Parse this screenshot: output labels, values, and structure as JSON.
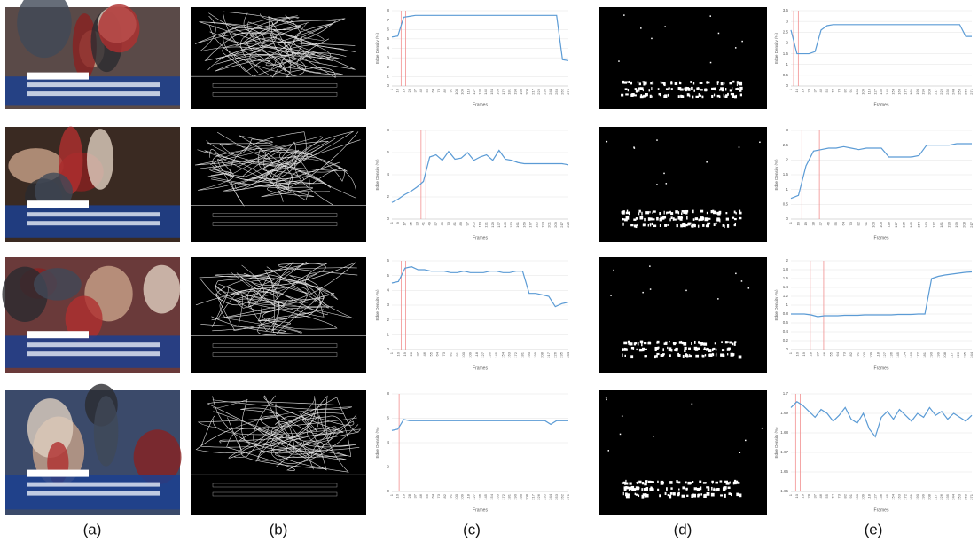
{
  "labels": [
    "(a)",
    "(b)",
    "(c)",
    "(d)",
    "(e)"
  ],
  "chart_data": [
    {
      "type": "line",
      "ylabel": "Edge Density (%)",
      "xlabel": "Frames",
      "color": "#5b9bd5",
      "grid": true,
      "categories": [
        1,
        10,
        19,
        28,
        37,
        46,
        55,
        64,
        73,
        82,
        91,
        100,
        109,
        118,
        127,
        136,
        145,
        154,
        163,
        172,
        181,
        190,
        199,
        208,
        217,
        226,
        235,
        244,
        253,
        262,
        271
      ],
      "values": [
        5.2,
        5.3,
        7.3,
        7.4,
        7.5,
        7.5,
        7.5,
        7.5,
        7.5,
        7.5,
        7.5,
        7.5,
        7.5,
        7.5,
        7.5,
        7.5,
        7.5,
        7.5,
        7.5,
        7.5,
        7.5,
        7.5,
        7.5,
        7.5,
        7.5,
        7.5,
        7.5,
        7.5,
        7.5,
        2.8,
        2.7
      ],
      "ylim": [
        0,
        8
      ],
      "yticks": [
        0,
        1,
        2,
        3,
        4,
        5,
        6,
        7,
        8
      ],
      "vlines": [
        15,
        22
      ],
      "vline_color": "#f08080"
    },
    {
      "type": "line",
      "ylabel": "Edge Density (%)",
      "xlabel": "Frames",
      "color": "#5b9bd5",
      "grid": true,
      "categories": [
        1,
        10,
        19,
        28,
        37,
        46,
        55,
        64,
        73,
        82,
        91,
        100,
        109,
        118,
        127,
        136,
        145,
        154,
        163,
        172,
        181,
        190,
        199,
        208,
        217,
        226,
        235,
        244,
        253,
        262,
        271
      ],
      "values": [
        2.6,
        1.5,
        1.5,
        1.5,
        1.6,
        2.6,
        2.8,
        2.85,
        2.85,
        2.85,
        2.85,
        2.85,
        2.85,
        2.85,
        2.85,
        2.85,
        2.85,
        2.85,
        2.85,
        2.85,
        2.85,
        2.85,
        2.85,
        2.85,
        2.85,
        2.85,
        2.85,
        2.85,
        2.85,
        2.3,
        2.3
      ],
      "ylim": [
        0,
        3.5
      ],
      "yticks": [
        0,
        0.5,
        1,
        1.5,
        2,
        2.5,
        3,
        3.5
      ],
      "vlines": [
        5,
        12
      ],
      "vline_color": "#f08080"
    },
    {
      "type": "line",
      "ylabel": "Edge Density (%)",
      "xlabel": "Frames",
      "color": "#5b9bd5",
      "grid": true,
      "categories": [
        1,
        9,
        17,
        25,
        33,
        41,
        49,
        57,
        65,
        73,
        81,
        89,
        97,
        105,
        113,
        121,
        129,
        137,
        145,
        153,
        161,
        169,
        177,
        185,
        193,
        201,
        209,
        217,
        225
      ],
      "values": [
        1.5,
        1.8,
        2.2,
        2.5,
        2.9,
        3.4,
        5.6,
        5.8,
        5.3,
        6.1,
        5.4,
        5.5,
        6.0,
        5.3,
        5.6,
        5.8,
        5.3,
        6.2,
        5.4,
        5.3,
        5.1,
        5.0,
        5.0,
        5.0,
        5.0,
        5.0,
        5.0,
        5.0,
        4.9
      ],
      "ylim": [
        0,
        8
      ],
      "yticks": [
        0,
        2,
        4,
        6,
        8
      ],
      "vlines": [
        38,
        44
      ],
      "vline_color": "#f08080"
    },
    {
      "type": "line",
      "ylabel": "Edge Density (%)",
      "xlabel": "Frames",
      "color": "#5b9bd5",
      "grid": true,
      "categories": [
        1,
        10,
        19,
        28,
        37,
        46,
        55,
        64,
        73,
        82,
        91,
        100,
        109,
        118,
        127,
        136,
        145,
        154,
        163,
        172,
        181,
        190,
        199,
        208,
        217
      ],
      "values": [
        0.7,
        0.8,
        1.8,
        2.3,
        2.35,
        2.4,
        2.4,
        2.45,
        2.4,
        2.35,
        2.4,
        2.4,
        2.4,
        2.1,
        2.1,
        2.1,
        2.1,
        2.15,
        2.5,
        2.5,
        2.5,
        2.5,
        2.55,
        2.55,
        2.55
      ],
      "ylim": [
        0,
        3
      ],
      "yticks": [
        0,
        0.5,
        1,
        1.5,
        2,
        2.5,
        3
      ],
      "vlines": [
        14,
        35
      ],
      "vline_color": "#f08080"
    },
    {
      "type": "line",
      "ylabel": "Edge Density (%)",
      "xlabel": "Frames",
      "color": "#5b9bd5",
      "grid": true,
      "categories": [
        1,
        10,
        19,
        28,
        37,
        46,
        55,
        64,
        73,
        82,
        91,
        100,
        109,
        118,
        127,
        136,
        145,
        154,
        163,
        172,
        181,
        190,
        199,
        208,
        217,
        226,
        235,
        244
      ],
      "values": [
        4.5,
        4.6,
        5.5,
        5.6,
        5.4,
        5.4,
        5.3,
        5.3,
        5.3,
        5.2,
        5.2,
        5.3,
        5.2,
        5.2,
        5.2,
        5.3,
        5.3,
        5.2,
        5.2,
        5.3,
        5.3,
        3.8,
        3.8,
        3.7,
        3.6,
        2.9,
        3.1,
        3.2
      ],
      "ylim": [
        0,
        6
      ],
      "yticks": [
        0,
        1,
        2,
        3,
        4,
        5,
        6
      ],
      "vlines": [
        14,
        20
      ],
      "vline_color": "#f08080"
    },
    {
      "type": "line",
      "ylabel": "Edge Density (%)",
      "xlabel": "Frames",
      "color": "#5b9bd5",
      "grid": true,
      "categories": [
        1,
        10,
        19,
        28,
        37,
        46,
        55,
        64,
        73,
        82,
        91,
        100,
        109,
        118,
        127,
        136,
        145,
        154,
        163,
        172,
        181,
        190,
        199,
        208,
        217,
        226,
        235,
        244
      ],
      "values": [
        0.8,
        0.8,
        0.8,
        0.78,
        0.74,
        0.76,
        0.76,
        0.76,
        0.77,
        0.77,
        0.77,
        0.78,
        0.78,
        0.78,
        0.78,
        0.78,
        0.79,
        0.79,
        0.79,
        0.8,
        0.8,
        1.6,
        1.65,
        1.68,
        1.7,
        1.72,
        1.74,
        1.75
      ],
      "ylim": [
        0,
        2
      ],
      "yticks": [
        0,
        0.2,
        0.4,
        0.6,
        0.8,
        1,
        1.2,
        1.4,
        1.6,
        1.8,
        2
      ],
      "vlines": [
        27,
        45
      ],
      "vline_color": "#f08080"
    },
    {
      "type": "line",
      "ylabel": "Edge Density (%)",
      "xlabel": "Frames",
      "color": "#5b9bd5",
      "grid": true,
      "categories": [
        1,
        10,
        19,
        28,
        37,
        46,
        55,
        64,
        73,
        82,
        91,
        100,
        109,
        118,
        127,
        136,
        145,
        154,
        163,
        172,
        181,
        190,
        199,
        208,
        217,
        226,
        235,
        244,
        253,
        262,
        271
      ],
      "values": [
        5.0,
        5.1,
        5.9,
        5.8,
        5.8,
        5.8,
        5.8,
        5.8,
        5.8,
        5.8,
        5.8,
        5.8,
        5.8,
        5.8,
        5.8,
        5.8,
        5.8,
        5.8,
        5.8,
        5.8,
        5.8,
        5.8,
        5.8,
        5.8,
        5.8,
        5.8,
        5.8,
        5.5,
        5.8,
        5.8,
        5.8
      ],
      "ylim": [
        0,
        8
      ],
      "yticks": [
        0,
        2,
        4,
        6,
        8
      ],
      "vlines": [
        12,
        18
      ],
      "vline_color": "#f08080"
    },
    {
      "type": "line",
      "ylabel": "Edge Density (%)",
      "xlabel": "Frames",
      "color": "#5b9bd5",
      "grid": true,
      "categories": [
        1,
        10,
        19,
        28,
        37,
        46,
        55,
        64,
        73,
        82,
        91,
        100,
        109,
        118,
        127,
        136,
        145,
        154,
        163,
        172,
        181,
        190,
        199,
        208,
        217,
        226,
        235,
        244,
        253,
        262,
        271
      ],
      "values": [
        1.693,
        1.696,
        1.694,
        1.691,
        1.688,
        1.692,
        1.69,
        1.686,
        1.689,
        1.693,
        1.687,
        1.685,
        1.69,
        1.682,
        1.678,
        1.688,
        1.691,
        1.687,
        1.692,
        1.689,
        1.686,
        1.69,
        1.688,
        1.693,
        1.689,
        1.691,
        1.687,
        1.69,
        1.688,
        1.686,
        1.689
      ],
      "ylim": [
        1.65,
        1.7
      ],
      "yticks": [
        1.65,
        1.66,
        1.67,
        1.68,
        1.69,
        1.7
      ],
      "vlines": [
        8,
        15
      ],
      "vline_color": "#f08080"
    }
  ]
}
